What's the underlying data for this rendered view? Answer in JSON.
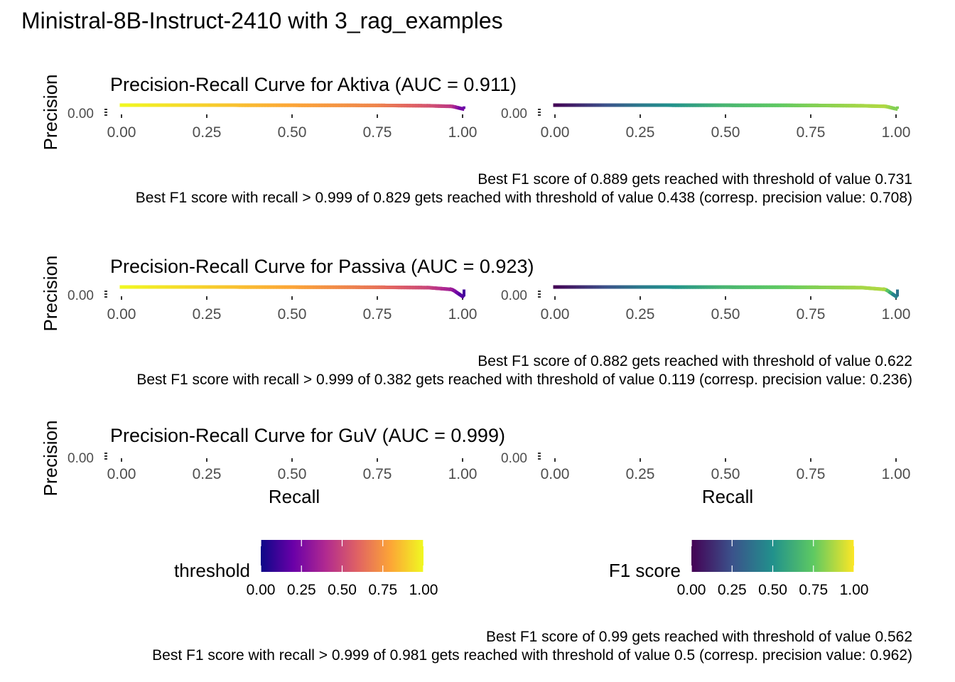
{
  "title": "Ministral-8B-Instruct-2410 with 3_rag_examples",
  "axis": {
    "ylabel": "Precision",
    "xlabel": "Recall",
    "x_ticks": [
      "0.00",
      "0.25",
      "0.50",
      "0.75",
      "1.00"
    ]
  },
  "chart_data": [
    {
      "type": "line",
      "title": "Precision-Recall Curve for Aktiva (AUC = 0.911)",
      "xlabel": "Recall",
      "ylabel": "Precision",
      "xlim": [
        0,
        1
      ],
      "y_tick_overlap_text": "0.00",
      "series": [
        {
          "color_by": "threshold",
          "x": [
            0.0,
            0.25,
            0.5,
            0.75,
            0.9,
            0.97,
            1.0
          ],
          "y": [
            1.0,
            1.0,
            0.99,
            0.98,
            0.95,
            0.9,
            0.7
          ],
          "c": [
            1.0,
            0.9,
            0.8,
            0.7,
            0.55,
            0.45,
            0.2
          ]
        },
        {
          "color_by": "f1",
          "x": [
            0.0,
            0.25,
            0.5,
            0.75,
            0.9,
            0.97,
            1.0
          ],
          "y": [
            1.0,
            1.0,
            0.99,
            0.98,
            0.95,
            0.9,
            0.7
          ],
          "c": [
            0.0,
            0.4,
            0.66,
            0.8,
            0.86,
            0.88,
            0.8
          ]
        }
      ],
      "caption": [
        "Best F1 score of 0.889 gets reached with threshold of value 0.731",
        "Best F1 score with recall > 0.999 of 0.829 gets reached with threshold of value 0.438 (corresp. precision value: 0.708)"
      ]
    },
    {
      "type": "line",
      "title": "Precision-Recall Curve for Passiva (AUC = 0.923)",
      "xlabel": "Recall",
      "ylabel": "Precision",
      "xlim": [
        0,
        1
      ],
      "y_tick_overlap_text": "0.00",
      "series": [
        {
          "color_by": "threshold",
          "x": [
            0.0,
            0.25,
            0.5,
            0.75,
            0.9,
            0.97,
            1.0
          ],
          "y": [
            1.0,
            1.0,
            0.99,
            0.98,
            0.95,
            0.8,
            0.24
          ],
          "c": [
            1.0,
            0.9,
            0.8,
            0.65,
            0.5,
            0.35,
            0.12
          ]
        },
        {
          "color_by": "f1",
          "x": [
            0.0,
            0.25,
            0.5,
            0.75,
            0.9,
            0.97,
            1.0
          ],
          "y": [
            1.0,
            1.0,
            0.99,
            0.98,
            0.95,
            0.8,
            0.24
          ],
          "c": [
            0.0,
            0.4,
            0.66,
            0.8,
            0.86,
            0.88,
            0.38
          ]
        }
      ],
      "caption": [
        "Best F1 score of 0.882 gets reached with threshold of value 0.622",
        "Best F1 score with recall > 0.999 of 0.382 gets reached with threshold of value 0.119 (corresp. precision value: 0.236)"
      ]
    },
    {
      "type": "line",
      "title": "Precision-Recall Curve for GuV (AUC = 0.999)",
      "xlabel": "Recall",
      "ylabel": "Precision",
      "xlim": [
        0,
        1
      ],
      "y_tick_overlap_text": "0.00",
      "series": [],
      "caption": [
        "Best F1 score of 0.99 gets reached with threshold of value 0.562",
        "Best F1 score with recall > 0.999 of 0.981 gets reached with threshold of value 0.5 (corresp. precision value: 0.962)"
      ]
    }
  ],
  "legends": [
    {
      "title": "threshold",
      "ticks": [
        "0.00",
        "0.25",
        "0.50",
        "0.75",
        "1.00"
      ],
      "scale": "plasma",
      "colors": [
        "#0d0887",
        "#6a00a8",
        "#b12a90",
        "#e16462",
        "#fca636",
        "#f0f921"
      ]
    },
    {
      "title": "F1 score",
      "ticks": [
        "0.00",
        "0.25",
        "0.50",
        "0.75",
        "1.00"
      ],
      "scale": "viridis",
      "colors": [
        "#440154",
        "#3b528b",
        "#21918c",
        "#5ec962",
        "#fde725"
      ]
    }
  ]
}
